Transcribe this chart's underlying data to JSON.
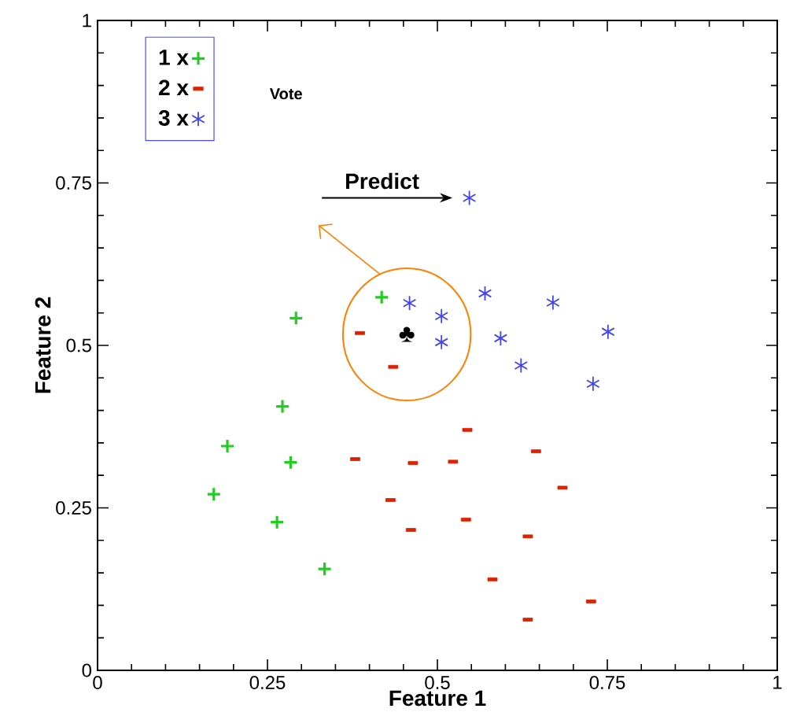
{
  "chart_data": {
    "type": "scatter",
    "xlabel": "Feature 1",
    "ylabel": "Feature 2",
    "xlim": [
      0,
      1
    ],
    "ylim": [
      0,
      1
    ],
    "xticks": [
      0,
      0.25,
      0.5,
      0.75,
      1
    ],
    "yticks": [
      0,
      0.25,
      0.5,
      0.75,
      1
    ],
    "legend": "top left",
    "annotations": [
      "Vote",
      {
        "text": "Predict",
        "x": 0.547,
        "y": 0.727
      },
      "♣"
    ],
    "series": [
      {
        "name": "1 x",
        "color": "#22cc22",
        "marker": "cross",
        "x": [
          0.418,
          0.292,
          0.272,
          0.191,
          0.284,
          0.171,
          0.264,
          0.334
        ],
        "values": [
          0.574,
          0.542,
          0.406,
          0.345,
          0.32,
          0.271,
          0.228,
          0.156
        ]
      },
      {
        "name": "2 x",
        "color": "#dd2200",
        "x": [
          0.386,
          0.435,
          0.544,
          0.379,
          0.464,
          0.523,
          0.645,
          0.684,
          0.431,
          0.542,
          0.461,
          0.633,
          0.581,
          0.726,
          0.633
        ],
        "values": [
          0.519,
          0.467,
          0.37,
          0.325,
          0.319,
          0.321,
          0.337,
          0.281,
          0.262,
          0.232,
          0.216,
          0.206,
          0.14,
          0.106,
          0.078
        ]
      },
      {
        "name": "3 x",
        "color": "#4444ee",
        "marker": "cross",
        "x": [
          0.547,
          0.459,
          0.506,
          0.506,
          0.57,
          0.67,
          0.751,
          0.593,
          0.623,
          0.729
        ],
        "values": [
          0.727,
          0.565,
          0.545,
          0.505,
          0.58,
          0.566,
          0.521,
          0.511,
          0.469,
          0.441
        ]
      }
    ]
  }
}
